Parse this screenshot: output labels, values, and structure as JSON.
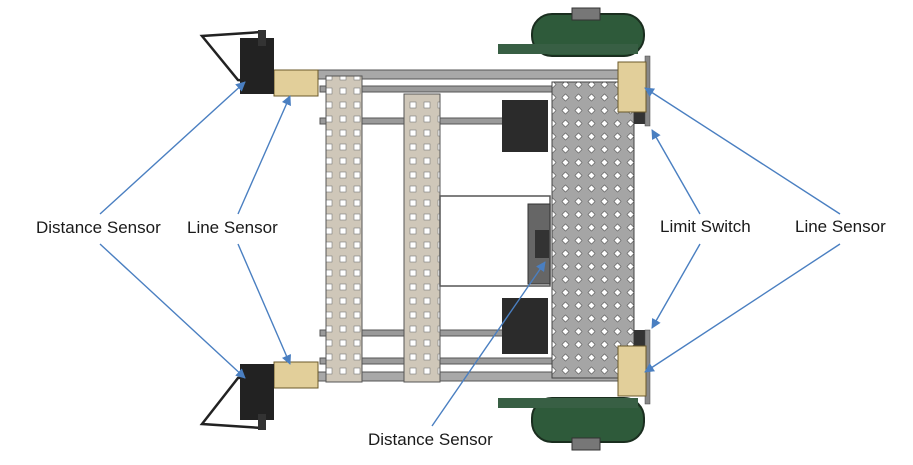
{
  "labels": {
    "distance_sensor_left": "Distance Sensor",
    "line_sensor_left": "Line Sensor",
    "limit_switch": "Limit Switch",
    "line_sensor_right": "Line Sensor",
    "distance_sensor_bottom": "Distance Sensor"
  },
  "colors": {
    "annotation": "#4a7fc1",
    "frame_dark": "#2b2b2b",
    "steel": "#9a9a9a",
    "plate": "#c9c0b2",
    "wheel": "#2e5a3a",
    "sensor": "#e2cf9a"
  }
}
